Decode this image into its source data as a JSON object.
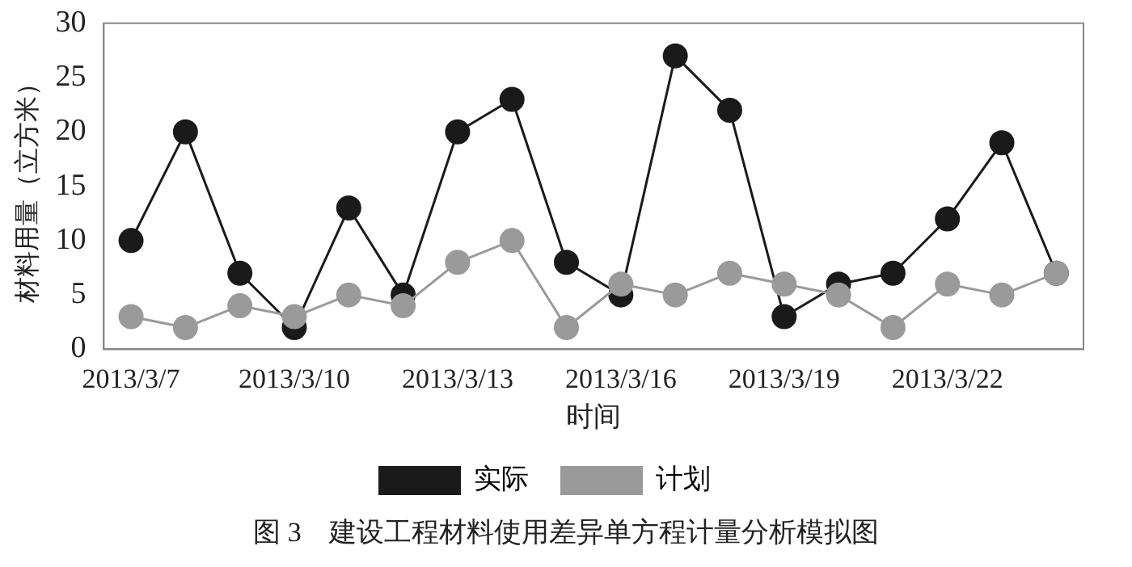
{
  "chart_data": {
    "type": "line",
    "xlabel": "时间",
    "ylabel": "材料用量（立方米）",
    "categories": [
      "2013/3/7",
      null,
      null,
      "2013/3/10",
      null,
      null,
      "2013/3/13",
      null,
      null,
      "2013/3/16",
      null,
      null,
      "2013/3/19",
      null,
      null,
      "2013/3/22",
      null,
      null
    ],
    "series": [
      {
        "name": "实际",
        "color": "#1a1a1a",
        "values": [
          10,
          20,
          7,
          2,
          13,
          5,
          20,
          23,
          8,
          5,
          27,
          22,
          3,
          6,
          7,
          12,
          19,
          7
        ]
      },
      {
        "name": "计划",
        "color": "#9a9a9a",
        "values": [
          3,
          2,
          4,
          3,
          5,
          4,
          8,
          10,
          2,
          6,
          5,
          7,
          6,
          5,
          2,
          6,
          5,
          7
        ]
      }
    ],
    "ylim": [
      0,
      30
    ],
    "yticks": [
      0,
      5,
      10,
      15,
      20,
      25,
      30
    ],
    "grid": false,
    "legend": "bottom",
    "marker": "circle",
    "line_style": "solid",
    "annotations": [
      "图 3　建设工程材料使用差异单方程计量分析模拟图"
    ]
  }
}
